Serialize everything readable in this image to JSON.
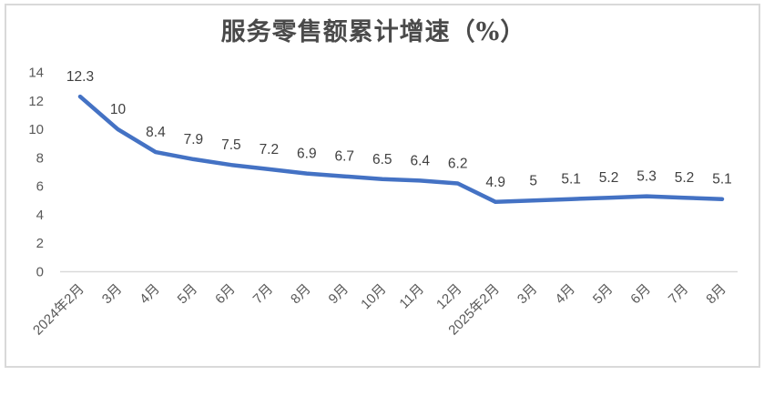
{
  "chart_data": {
    "type": "line",
    "title": "服务零售额累计增速（%）",
    "categories": [
      "2024年2月",
      "3月",
      "4月",
      "5月",
      "6月",
      "7月",
      "8月",
      "9月",
      "10月",
      "11月",
      "12月",
      "2025年2月",
      "3月",
      "4月",
      "5月",
      "6月",
      "7月",
      "8月"
    ],
    "series": [
      {
        "name": "服务零售额累计增速",
        "values": [
          12.3,
          10,
          8.4,
          7.9,
          7.5,
          7.2,
          6.9,
          6.7,
          6.5,
          6.4,
          6.2,
          4.9,
          5,
          5.1,
          5.2,
          5.3,
          5.2,
          5.1
        ]
      }
    ],
    "data_labels_shown": true,
    "xlabel": "",
    "ylabel": "",
    "y_ticks": [
      0,
      2,
      4,
      6,
      8,
      10,
      12,
      14
    ],
    "ylim": [
      0,
      14
    ],
    "grid": false,
    "legend_position": "none",
    "colors": {
      "line": "#4472C4",
      "data_label": "#404040",
      "tick_label": "#595959",
      "axis_line": "#d9d9d9",
      "frame_border": "#d9d9d9",
      "title": "#4a4a4a",
      "background": "#ffffff"
    }
  }
}
